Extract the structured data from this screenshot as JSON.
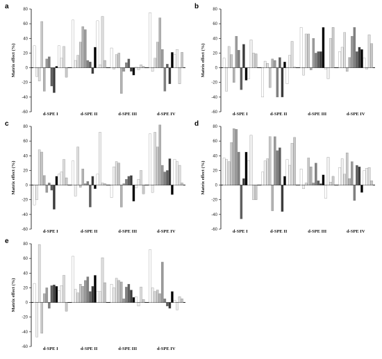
{
  "figure": {
    "background": "#ffffff"
  },
  "bar_palette": [
    "#ffffff",
    "#f0f0f0",
    "#dddddd",
    "#c8c8c8",
    "#b2b2b2",
    "#9a9a9a",
    "#808080",
    "#5e5e5e",
    "#3a3a3a",
    "#000000"
  ],
  "chart_data": [
    {
      "panel": "a",
      "type": "bar",
      "ylabel": "Matrix effect (%)",
      "ylim": [
        -60,
        80
      ],
      "yticks": [
        -60,
        -40,
        -20,
        0,
        20,
        40,
        60,
        80
      ],
      "grid": false,
      "categories": [
        "d-SPE I",
        "d-SPE II",
        "d-SPE III",
        "d-SPE IV"
      ],
      "groups": [
        [
          30,
          -12,
          -18,
          63,
          -32,
          12,
          15,
          -25,
          -34,
          2,
          30,
          13,
          29,
          -13
        ],
        [
          65,
          10,
          17,
          35,
          56,
          52,
          10,
          8,
          -8,
          28,
          64,
          4,
          70,
          10
        ],
        [
          27,
          -2,
          18,
          20,
          -35,
          -5,
          7,
          12,
          -5,
          -10,
          1,
          -3,
          4,
          2
        ],
        [
          75,
          -5,
          13,
          35,
          68,
          25,
          -32,
          5,
          -22,
          21,
          18,
          25,
          -22,
          21
        ]
      ]
    },
    {
      "panel": "b",
      "type": "bar",
      "ylabel": "Matrix effect (%)",
      "ylim": [
        -60,
        80
      ],
      "yticks": [
        -60,
        -40,
        -20,
        0,
        20,
        40,
        60,
        80
      ],
      "grid": false,
      "categories": [
        "d-SPE I",
        "d-SPE II",
        "d-SPE III",
        "d-SPE IV"
      ],
      "groups": [
        [
          13,
          -32,
          29,
          18,
          -20,
          43,
          24,
          -30,
          32,
          -17,
          -15,
          38,
          20,
          19
        ],
        [
          -40,
          9,
          6,
          -27,
          12,
          10,
          -40,
          14,
          -40,
          8,
          -22,
          17,
          36,
          1
        ],
        [
          55,
          -10,
          46,
          46,
          -3,
          40,
          20,
          22,
          22,
          55,
          -2,
          -15,
          40,
          55
        ],
        [
          22,
          28,
          48,
          -5,
          14,
          43,
          55,
          22,
          28,
          25,
          13,
          -2,
          45,
          33
        ]
      ]
    },
    {
      "panel": "c",
      "type": "bar",
      "ylabel": "Matrix effect (%)",
      "ylim": [
        -60,
        80
      ],
      "yticks": [
        -60,
        -40,
        -20,
        0,
        20,
        40,
        60,
        80
      ],
      "grid": false,
      "categories": [
        "d-SPE I",
        "d-SPE II",
        "d-SPE III",
        "d-SPE IV"
      ],
      "groups": [
        [
          -27,
          -20,
          48,
          45,
          13,
          -10,
          3,
          -7,
          -33,
          12,
          15,
          18,
          35,
          10
        ],
        [
          33,
          -15,
          52,
          -3,
          22,
          2,
          5,
          -30,
          12,
          -5,
          15,
          72,
          3,
          2
        ],
        [
          -17,
          25,
          32,
          30,
          -30,
          2,
          8,
          12,
          13,
          -22,
          -4,
          8,
          20,
          -12
        ],
        [
          70,
          -10,
          72,
          52,
          82,
          27,
          18,
          20,
          36,
          -13,
          35,
          32,
          27,
          3
        ]
      ]
    },
    {
      "panel": "d",
      "type": "bar",
      "ylabel": "Matrix effect (%)",
      "ylim": [
        -60,
        80
      ],
      "yticks": [
        -60,
        -40,
        -20,
        0,
        20,
        40,
        60,
        80
      ],
      "grid": false,
      "categories": [
        "d-SPE I",
        "d-SPE II",
        "d-SPE III",
        "d-SPE IV"
      ],
      "groups": [
        [
          37,
          35,
          32,
          58,
          77,
          76,
          45,
          -46,
          9,
          45,
          33,
          68,
          -20,
          -20
        ],
        [
          18,
          33,
          36,
          66,
          -35,
          66,
          47,
          51,
          -36,
          12,
          35,
          27,
          57,
          65
        ],
        [
          22,
          -5,
          3,
          37,
          25,
          3,
          30,
          6,
          2,
          14,
          -18,
          38,
          4,
          12
        ],
        [
          24,
          36,
          15,
          44,
          9,
          32,
          -21,
          27,
          25,
          -10,
          20,
          23,
          24,
          6
        ]
      ]
    },
    {
      "panel": "e",
      "type": "bar",
      "ylabel": "Matrix effect (%)",
      "ylim": [
        -60,
        80
      ],
      "yticks": [
        -60,
        -40,
        -20,
        0,
        20,
        40,
        60,
        80
      ],
      "grid": false,
      "categories": [
        "d-SPE I",
        "d-SPE II",
        "d-SPE III",
        "d-SPE IV"
      ],
      "groups": [
        [
          26,
          -47,
          79,
          -42,
          12,
          20,
          -8,
          23,
          24,
          22,
          16,
          23,
          37,
          -12
        ],
        [
          63,
          18,
          13,
          25,
          22,
          30,
          35,
          15,
          22,
          37,
          15,
          15,
          61,
          27
        ],
        [
          25,
          20,
          33,
          30,
          28,
          5,
          21,
          25,
          17,
          7,
          8,
          -5,
          21,
          4
        ],
        [
          72,
          20,
          15,
          17,
          12,
          55,
          5,
          -5,
          -8,
          15,
          3,
          -10,
          8,
          5
        ]
      ]
    }
  ]
}
